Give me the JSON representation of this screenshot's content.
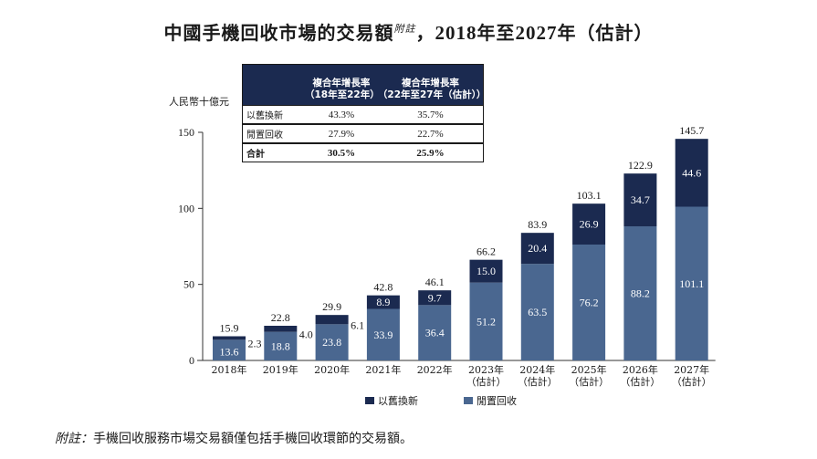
{
  "title": {
    "main": "中國手機回收市場的交易額",
    "superscript": "附註",
    "suffix_sep": "，",
    "year_from": "2018",
    "year_word_1": "年至",
    "year_to": "2027",
    "year_word_2": "年（估計）"
  },
  "unit_label": "人民幣十億元",
  "cagr_table": {
    "headers": [
      "",
      "複合年增長率（18年至22年）",
      "複合年增長率（22年至27年（估計））"
    ],
    "header_lines": [
      [
        "",
        ""
      ],
      [
        "複合年增長率",
        "（18年至22年）"
      ],
      [
        "複合年增長率",
        "（22年至27年（估計））"
      ]
    ],
    "rows": [
      {
        "label": "以舊換新",
        "v1": "43.3%",
        "v2": "35.7%"
      },
      {
        "label": "閒置回收",
        "v1": "27.9%",
        "v2": "22.7%"
      },
      {
        "label": "合計",
        "v1": "30.5%",
        "v2": "25.9%"
      }
    ]
  },
  "legend": [
    {
      "name": "以舊換新",
      "color": "#1b2a50"
    },
    {
      "name": "閒置回收",
      "color": "#4a6790"
    }
  ],
  "footnote": {
    "label": "附註：",
    "text": "手機回收服務市場交易額僅包括手機回收環節的交易額。"
  },
  "chart_data": {
    "type": "bar",
    "stacked": true,
    "title": "中國手機回收市場的交易額，2018年至2027年（估計）",
    "ylabel": "人民幣十億元",
    "xlabel": "",
    "ylim": [
      0,
      150
    ],
    "yticks": [
      0,
      50,
      100,
      150
    ],
    "grid": false,
    "legend_position": "bottom",
    "categories": [
      "2018年",
      "2019年",
      "2020年",
      "2021年",
      "2022年",
      "2023年\n（估計）",
      "2024年\n（估計）",
      "2025年\n（估計）",
      "2026年\n（估計）",
      "2027年\n（估計）"
    ],
    "category_lines": [
      [
        "2018年",
        ""
      ],
      [
        "2019年",
        ""
      ],
      [
        "2020年",
        ""
      ],
      [
        "2021年",
        ""
      ],
      [
        "2022年",
        ""
      ],
      [
        "2023年",
        "（估計）"
      ],
      [
        "2024年",
        "（估計）"
      ],
      [
        "2025年",
        "（估計）"
      ],
      [
        "2026年",
        "（估計）"
      ],
      [
        "2027年",
        "（估計）"
      ]
    ],
    "series": [
      {
        "name": "閒置回收",
        "color": "#4a6790",
        "values": [
          13.6,
          18.8,
          23.8,
          33.9,
          36.4,
          51.2,
          63.5,
          76.2,
          88.2,
          101.1
        ]
      },
      {
        "name": "以舊換新",
        "color": "#1b2a50",
        "values": [
          2.3,
          4.0,
          6.1,
          8.9,
          9.7,
          15.0,
          20.4,
          26.9,
          34.7,
          44.6
        ]
      }
    ],
    "totals": [
      15.9,
      22.8,
      29.9,
      42.8,
      46.1,
      66.2,
      83.9,
      103.1,
      122.9,
      145.7
    ]
  }
}
